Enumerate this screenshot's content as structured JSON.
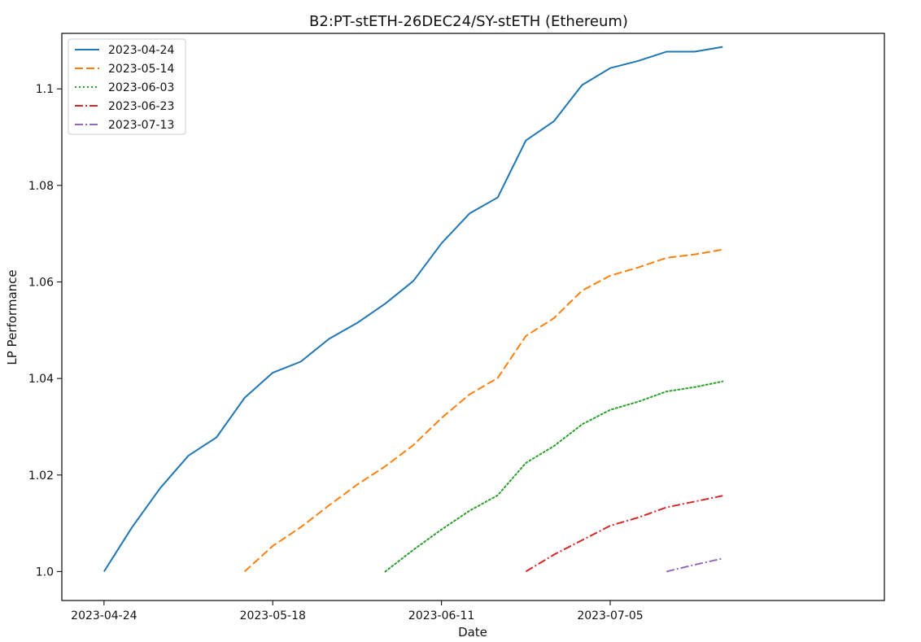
{
  "chart_data": {
    "type": "line",
    "title": "B2:PT-stETH-26DEC24/SY-stETH (Ethereum)",
    "xlabel": "Date",
    "ylabel": "LP Performance",
    "ylim": [
      0.994,
      1.1115
    ],
    "xlim": [
      "2023-04-18",
      "2023-08-13"
    ],
    "grid": false,
    "legend_position": "top-left",
    "x_ticks": [
      "2023-04-24",
      "2023-05-18",
      "2023-06-11",
      "2023-07-05"
    ],
    "y_ticks": [
      "1.0",
      "1.02",
      "1.04",
      "1.06",
      "1.08",
      "1.1"
    ],
    "series": [
      {
        "name": "2023-04-24",
        "color": "#1f77b4",
        "dash": "solid",
        "points": [
          [
            "2023-04-24",
            1.0
          ],
          [
            "2023-04-28",
            1.0092
          ],
          [
            "2023-05-02",
            1.0173
          ],
          [
            "2023-05-06",
            1.024
          ],
          [
            "2023-05-10",
            1.0278
          ],
          [
            "2023-05-14",
            1.036
          ],
          [
            "2023-05-18",
            1.0412
          ],
          [
            "2023-05-22",
            1.0435
          ],
          [
            "2023-05-26",
            1.0482
          ],
          [
            "2023-05-30",
            1.0515
          ],
          [
            "2023-06-03",
            1.0555
          ],
          [
            "2023-06-07",
            1.0602
          ],
          [
            "2023-06-11",
            1.068
          ],
          [
            "2023-06-15",
            1.0742
          ],
          [
            "2023-06-19",
            1.0775
          ],
          [
            "2023-06-23",
            1.0893
          ],
          [
            "2023-06-27",
            1.0933
          ],
          [
            "2023-07-01",
            1.1008
          ],
          [
            "2023-07-05",
            1.1043
          ],
          [
            "2023-07-09",
            1.1058
          ],
          [
            "2023-07-13",
            1.1077
          ],
          [
            "2023-07-17",
            1.1077
          ],
          [
            "2023-07-21",
            1.1087
          ]
        ]
      },
      {
        "name": "2023-05-14",
        "color": "#ff7f0e",
        "dash": "dashed",
        "points": [
          [
            "2023-05-14",
            1.0
          ],
          [
            "2023-05-18",
            1.0053
          ],
          [
            "2023-05-22",
            1.0092
          ],
          [
            "2023-05-26",
            1.0137
          ],
          [
            "2023-05-30",
            1.018
          ],
          [
            "2023-06-03",
            1.0218
          ],
          [
            "2023-06-07",
            1.0262
          ],
          [
            "2023-06-11",
            1.0318
          ],
          [
            "2023-06-15",
            1.0367
          ],
          [
            "2023-06-19",
            1.0401
          ],
          [
            "2023-06-23",
            1.0488
          ],
          [
            "2023-06-27",
            1.0525
          ],
          [
            "2023-07-01",
            1.0582
          ],
          [
            "2023-07-05",
            1.0613
          ],
          [
            "2023-07-09",
            1.063
          ],
          [
            "2023-07-13",
            1.065
          ],
          [
            "2023-07-17",
            1.0657
          ],
          [
            "2023-07-21",
            1.0667
          ]
        ]
      },
      {
        "name": "2023-06-03",
        "color": "#2ca02c",
        "dash": "dotted",
        "points": [
          [
            "2023-06-03",
            1.0
          ],
          [
            "2023-06-07",
            1.0045
          ],
          [
            "2023-06-11",
            1.0087
          ],
          [
            "2023-06-15",
            1.0126
          ],
          [
            "2023-06-19",
            1.0158
          ],
          [
            "2023-06-23",
            1.0225
          ],
          [
            "2023-06-27",
            1.026
          ],
          [
            "2023-07-01",
            1.0305
          ],
          [
            "2023-07-05",
            1.0335
          ],
          [
            "2023-07-09",
            1.0352
          ],
          [
            "2023-07-13",
            1.0373
          ],
          [
            "2023-07-17",
            1.0382
          ],
          [
            "2023-07-21",
            1.0394
          ]
        ]
      },
      {
        "name": "2023-06-23",
        "color": "#d62728",
        "dash": "dashdot",
        "points": [
          [
            "2023-06-23",
            1.0
          ],
          [
            "2023-06-27",
            1.0035
          ],
          [
            "2023-07-01",
            1.0065
          ],
          [
            "2023-07-05",
            1.0095
          ],
          [
            "2023-07-09",
            1.0112
          ],
          [
            "2023-07-13",
            1.0133
          ],
          [
            "2023-07-17",
            1.0145
          ],
          [
            "2023-07-21",
            1.0157
          ]
        ]
      },
      {
        "name": "2023-07-13",
        "color": "#9467bd",
        "dash": "dashdot",
        "points": [
          [
            "2023-07-13",
            1.0
          ],
          [
            "2023-07-17",
            1.0014
          ],
          [
            "2023-07-21",
            1.0027
          ]
        ]
      }
    ]
  }
}
